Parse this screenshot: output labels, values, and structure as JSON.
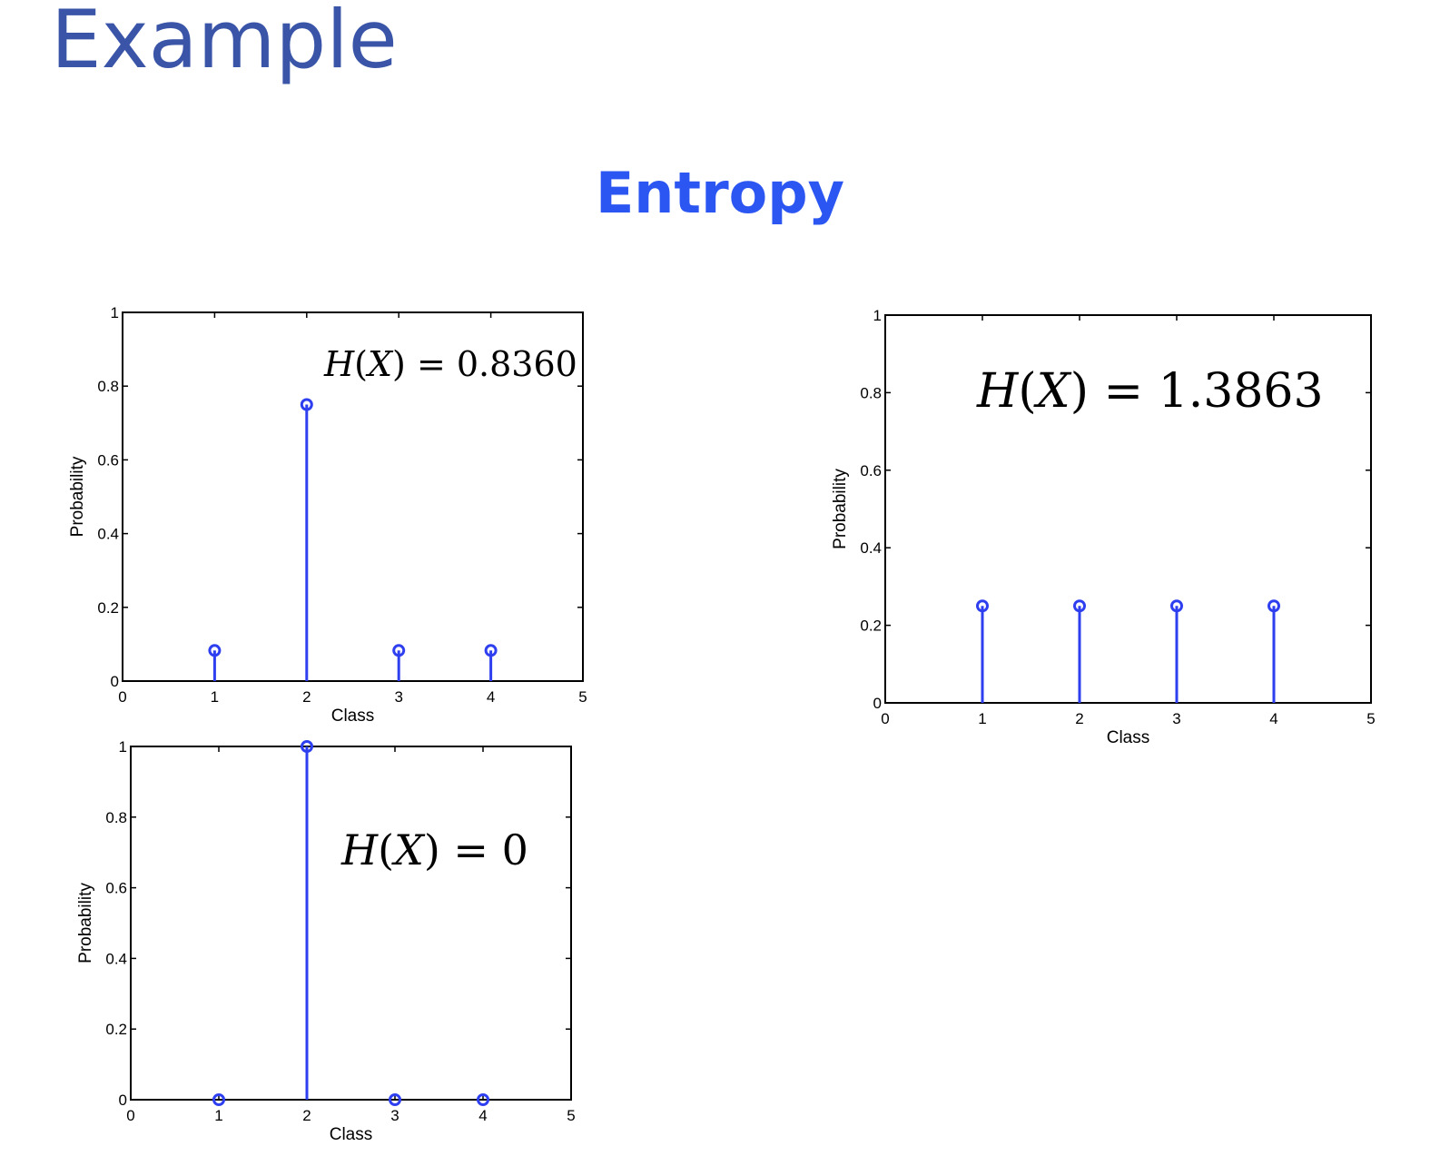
{
  "page": {
    "title": "Example",
    "subtitle": "Entropy"
  },
  "colors": {
    "stem": "#2e3ff0",
    "title": "#3a55a8",
    "subtitle": "#2b56f2"
  },
  "chart_data": [
    {
      "type": "stem",
      "categories": [
        1,
        2,
        3,
        4
      ],
      "values": [
        0.083,
        0.75,
        0.083,
        0.083
      ],
      "annotation": "H(X) = 0.8360",
      "xlabel": "Class",
      "ylabel": "Probability",
      "xlim": [
        0,
        5
      ],
      "ylim": [
        0,
        1
      ],
      "xticks": [
        "0",
        "1",
        "2",
        "3",
        "4",
        "5"
      ],
      "yticks": [
        "0",
        "0.2",
        "0.4",
        "0.6",
        "0.8",
        "1"
      ],
      "grid": false
    },
    {
      "type": "stem",
      "categories": [
        1,
        2,
        3,
        4
      ],
      "values": [
        0.25,
        0.25,
        0.25,
        0.25
      ],
      "annotation": "H(X) = 1.3863",
      "xlabel": "Class",
      "ylabel": "Probability",
      "xlim": [
        0,
        5
      ],
      "ylim": [
        0,
        1
      ],
      "xticks": [
        "0",
        "1",
        "2",
        "3",
        "4",
        "5"
      ],
      "yticks": [
        "0",
        "0.2",
        "0.4",
        "0.6",
        "0.8",
        "1"
      ],
      "grid": false
    },
    {
      "type": "stem",
      "categories": [
        1,
        2,
        3,
        4
      ],
      "values": [
        0,
        1,
        0,
        0
      ],
      "annotation": "H(X) = 0",
      "xlabel": "Class",
      "ylabel": "Probability",
      "xlim": [
        0,
        5
      ],
      "ylim": [
        0,
        1
      ],
      "xticks": [
        "0",
        "1",
        "2",
        "3",
        "4",
        "5"
      ],
      "yticks": [
        "0",
        "0.2",
        "0.4",
        "0.6",
        "0.8",
        "1"
      ],
      "grid": false
    }
  ]
}
